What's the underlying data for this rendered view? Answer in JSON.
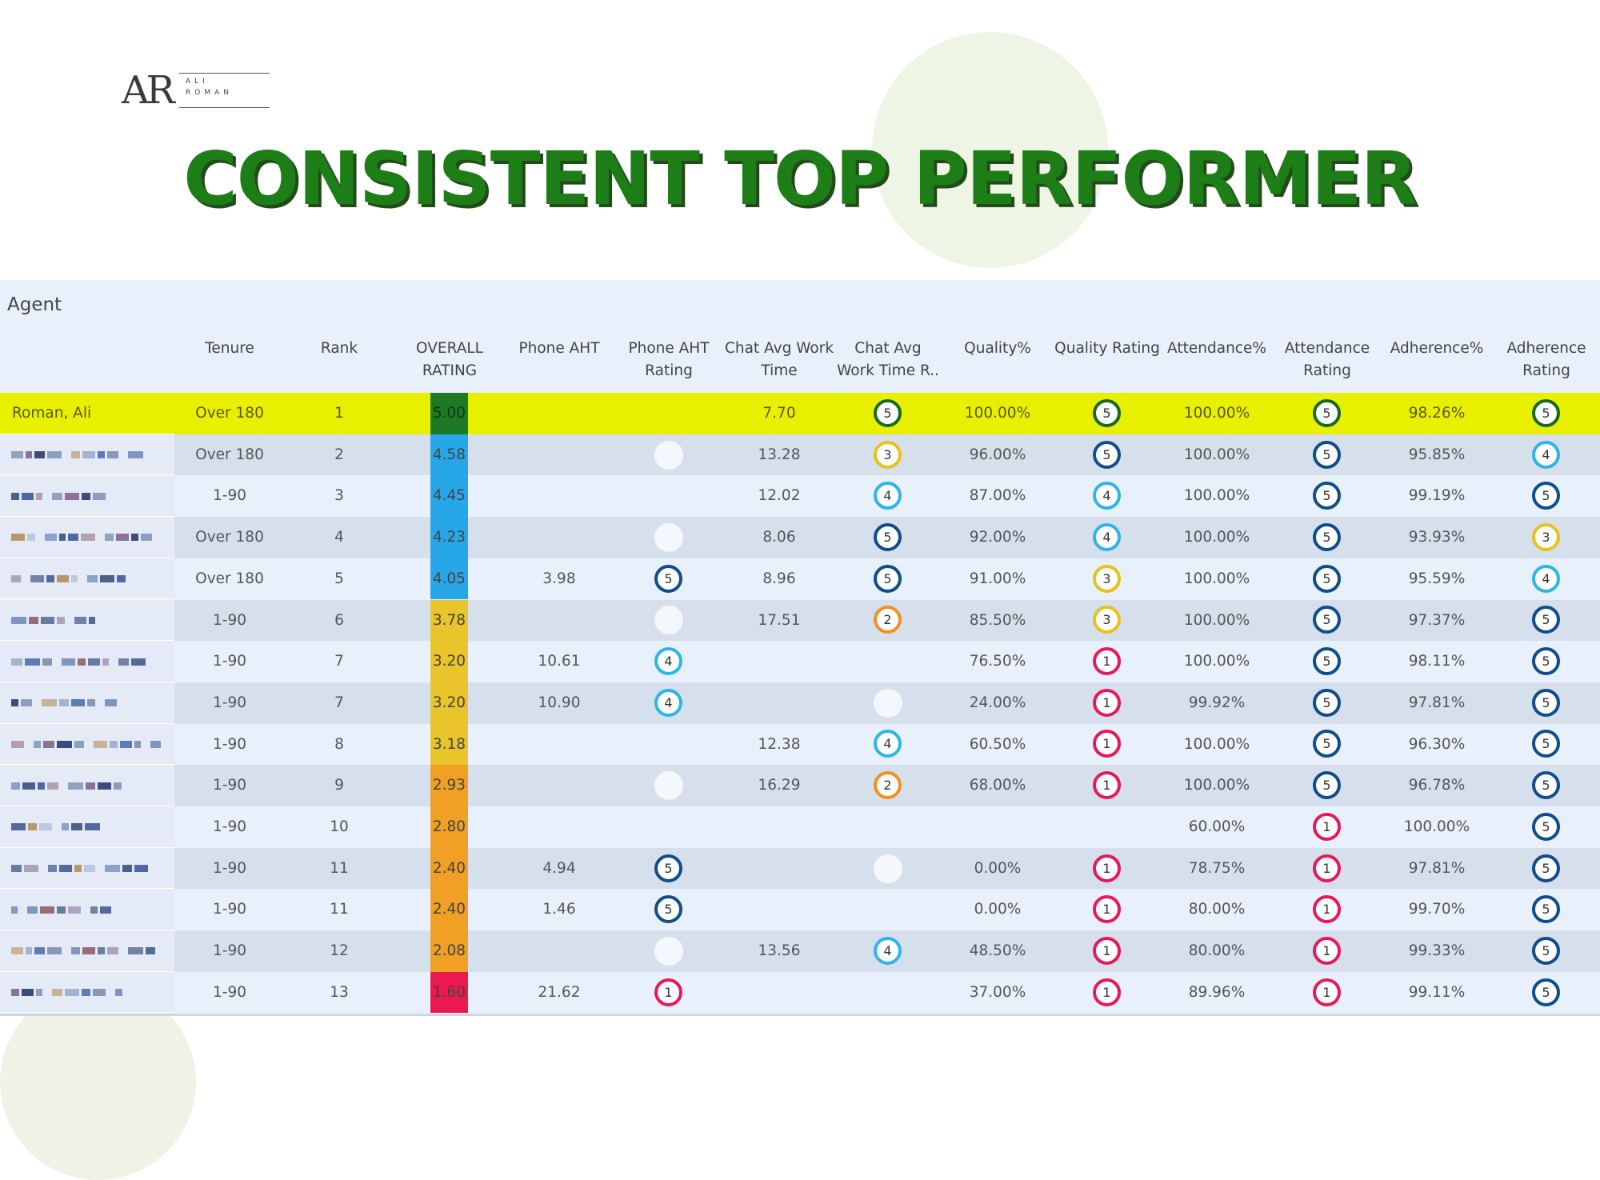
{
  "branding": {
    "monogram": "AR",
    "first_name": "ALI",
    "last_name": "ROMAN"
  },
  "title": "CONSISTENT TOP PERFORMER",
  "table": {
    "agent_header": "Agent",
    "headers": [
      {
        "key": "tenure",
        "l1": "Tenure",
        "l2": ""
      },
      {
        "key": "rank",
        "l1": "Rank",
        "l2": ""
      },
      {
        "key": "overall",
        "l1": "OVERALL",
        "l2": "RATING"
      },
      {
        "key": "phone_aht",
        "l1": "Phone AHT",
        "l2": ""
      },
      {
        "key": "phone_aht_rating",
        "l1": "Phone AHT",
        "l2": "Rating"
      },
      {
        "key": "chat_awt",
        "l1": "Chat Avg Work",
        "l2": "Time"
      },
      {
        "key": "chat_awt_rating",
        "l1": "Chat Avg",
        "l2": "Work Time R.."
      },
      {
        "key": "quality",
        "l1": "Quality%",
        "l2": ""
      },
      {
        "key": "quality_rating",
        "l1": "Quality Rating",
        "l2": ""
      },
      {
        "key": "attendance",
        "l1": "Attendance%",
        "l2": ""
      },
      {
        "key": "attendance_rating",
        "l1": "Attendance",
        "l2": "Rating"
      },
      {
        "key": "adherence",
        "l1": "Adherence%",
        "l2": ""
      },
      {
        "key": "adherence_rating",
        "l1": "Adherence",
        "l2": "Rating"
      }
    ],
    "rating_colors": {
      "1": "#e6195a",
      "2": "#f29021",
      "3": "#e7c11d",
      "4": "#2fb4ea",
      "5": "#0f4d8c",
      "top": "#1a6a1e"
    },
    "overall_colors": {
      "green": "#1c7a25",
      "blue": "#27a7e8",
      "yellow": "#e9c42a",
      "orange": "#f0a024",
      "red": "#ec1850"
    },
    "rows": [
      {
        "agent": "Roman, Ali",
        "highlight": true,
        "tenure": "Over 180",
        "rank": "1",
        "overall": "5.00",
        "overall_color": "green",
        "phone_aht": "",
        "phone_aht_rating": null,
        "chat_awt": "7.70",
        "chat_awt_rating": "5",
        "quality": "100.00%",
        "quality_rating": "5",
        "attendance": "100.00%",
        "attendance_rating": "5",
        "adherence": "98.26%",
        "adherence_rating": "5"
      },
      {
        "agent": null,
        "tenure": "Over 180",
        "rank": "2",
        "overall": "4.58",
        "overall_color": "blue",
        "phone_aht": "",
        "phone_aht_rating": "empty",
        "chat_awt": "13.28",
        "chat_awt_rating": "3",
        "quality": "96.00%",
        "quality_rating": "5",
        "attendance": "100.00%",
        "attendance_rating": "5",
        "adherence": "95.85%",
        "adherence_rating": "4"
      },
      {
        "agent": null,
        "tenure": "1-90",
        "rank": "3",
        "overall": "4.45",
        "overall_color": "blue",
        "phone_aht": "",
        "phone_aht_rating": null,
        "chat_awt": "12.02",
        "chat_awt_rating": "4",
        "quality": "87.00%",
        "quality_rating": "4",
        "attendance": "100.00%",
        "attendance_rating": "5",
        "adherence": "99.19%",
        "adherence_rating": "5"
      },
      {
        "agent": null,
        "tenure": "Over 180",
        "rank": "4",
        "overall": "4.23",
        "overall_color": "blue",
        "phone_aht": "",
        "phone_aht_rating": "empty",
        "chat_awt": "8.06",
        "chat_awt_rating": "5",
        "quality": "92.00%",
        "quality_rating": "4",
        "attendance": "100.00%",
        "attendance_rating": "5",
        "adherence": "93.93%",
        "adherence_rating": "3"
      },
      {
        "agent": null,
        "tenure": "Over 180",
        "rank": "5",
        "overall": "4.05",
        "overall_color": "blue",
        "phone_aht": "3.98",
        "phone_aht_rating": "5",
        "chat_awt": "8.96",
        "chat_awt_rating": "5",
        "quality": "91.00%",
        "quality_rating": "3",
        "attendance": "100.00%",
        "attendance_rating": "5",
        "adherence": "95.59%",
        "adherence_rating": "4"
      },
      {
        "agent": null,
        "tenure": "1-90",
        "rank": "6",
        "overall": "3.78",
        "overall_color": "yellow",
        "phone_aht": "",
        "phone_aht_rating": "empty",
        "chat_awt": "17.51",
        "chat_awt_rating": "2",
        "quality": "85.50%",
        "quality_rating": "3",
        "attendance": "100.00%",
        "attendance_rating": "5",
        "adherence": "97.37%",
        "adherence_rating": "5"
      },
      {
        "agent": null,
        "tenure": "1-90",
        "rank": "7",
        "overall": "3.20",
        "overall_color": "yellow",
        "phone_aht": "10.61",
        "phone_aht_rating": "4",
        "chat_awt": "",
        "chat_awt_rating": null,
        "quality": "76.50%",
        "quality_rating": "1",
        "attendance": "100.00%",
        "attendance_rating": "5",
        "adherence": "98.11%",
        "adherence_rating": "5"
      },
      {
        "agent": null,
        "tenure": "1-90",
        "rank": "7",
        "overall": "3.20",
        "overall_color": "yellow",
        "phone_aht": "10.90",
        "phone_aht_rating": "4",
        "chat_awt": "",
        "chat_awt_rating": "empty",
        "quality": "24.00%",
        "quality_rating": "1",
        "attendance": "99.92%",
        "attendance_rating": "5",
        "adherence": "97.81%",
        "adherence_rating": "5"
      },
      {
        "agent": null,
        "tenure": "1-90",
        "rank": "8",
        "overall": "3.18",
        "overall_color": "yellow",
        "phone_aht": "",
        "phone_aht_rating": null,
        "chat_awt": "12.38",
        "chat_awt_rating": "4",
        "quality": "60.50%",
        "quality_rating": "1",
        "attendance": "100.00%",
        "attendance_rating": "5",
        "adherence": "96.30%",
        "adherence_rating": "5"
      },
      {
        "agent": null,
        "tenure": "1-90",
        "rank": "9",
        "overall": "2.93",
        "overall_color": "orange",
        "phone_aht": "",
        "phone_aht_rating": "empty",
        "chat_awt": "16.29",
        "chat_awt_rating": "2",
        "quality": "68.00%",
        "quality_rating": "1",
        "attendance": "100.00%",
        "attendance_rating": "5",
        "adherence": "96.78%",
        "adherence_rating": "5"
      },
      {
        "agent": null,
        "tenure": "1-90",
        "rank": "10",
        "overall": "2.80",
        "overall_color": "orange",
        "phone_aht": "",
        "phone_aht_rating": null,
        "chat_awt": "",
        "chat_awt_rating": null,
        "quality": "",
        "quality_rating": null,
        "attendance": "60.00%",
        "attendance_rating": "1",
        "adherence": "100.00%",
        "adherence_rating": "5"
      },
      {
        "agent": null,
        "tenure": "1-90",
        "rank": "11",
        "overall": "2.40",
        "overall_color": "orange",
        "phone_aht": "4.94",
        "phone_aht_rating": "5",
        "chat_awt": "",
        "chat_awt_rating": "empty",
        "quality": "0.00%",
        "quality_rating": "1",
        "attendance": "78.75%",
        "attendance_rating": "1",
        "adherence": "97.81%",
        "adherence_rating": "5"
      },
      {
        "agent": null,
        "tenure": "1-90",
        "rank": "11",
        "overall": "2.40",
        "overall_color": "orange",
        "phone_aht": "1.46",
        "phone_aht_rating": "5",
        "chat_awt": "",
        "chat_awt_rating": null,
        "quality": "0.00%",
        "quality_rating": "1",
        "attendance": "80.00%",
        "attendance_rating": "1",
        "adherence": "99.70%",
        "adherence_rating": "5"
      },
      {
        "agent": null,
        "tenure": "1-90",
        "rank": "12",
        "overall": "2.08",
        "overall_color": "orange",
        "phone_aht": "",
        "phone_aht_rating": "empty",
        "chat_awt": "13.56",
        "chat_awt_rating": "4",
        "quality": "48.50%",
        "quality_rating": "1",
        "attendance": "80.00%",
        "attendance_rating": "1",
        "adherence": "99.33%",
        "adherence_rating": "5"
      },
      {
        "agent": null,
        "tenure": "1-90",
        "rank": "13",
        "overall": "1.60",
        "overall_color": "red",
        "phone_aht": "21.62",
        "phone_aht_rating": "1",
        "chat_awt": "",
        "chat_awt_rating": null,
        "quality": "37.00%",
        "quality_rating": "1",
        "attendance": "89.96%",
        "attendance_rating": "1",
        "adherence": "99.11%",
        "adherence_rating": "5"
      }
    ]
  }
}
